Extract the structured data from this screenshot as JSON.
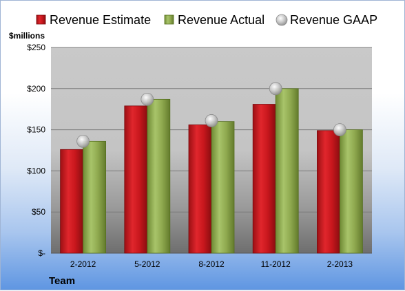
{
  "chart_data": {
    "type": "bar",
    "ylabel": "$millions",
    "xlabel": "Team",
    "categories": [
      "2-2012",
      "5-2012",
      "8-2012",
      "11-2012",
      "2-2013"
    ],
    "ylim": [
      0,
      250
    ],
    "yticks": [
      0,
      50,
      100,
      150,
      200,
      250
    ],
    "ytick_labels": [
      "$-",
      "$50",
      "$100",
      "$150",
      "$200",
      "$250"
    ],
    "grid": true,
    "legend_position": "top",
    "series": [
      {
        "name": "Revenue Estimate",
        "type": "bar",
        "values": [
          126,
          179,
          156,
          181,
          149
        ],
        "color": "#c0161c"
      },
      {
        "name": "Revenue Actual",
        "type": "bar",
        "values": [
          136,
          187,
          160,
          200,
          150
        ],
        "color": "#8faa4e"
      },
      {
        "name": "Revenue GAAP",
        "type": "scatter",
        "values": [
          136,
          187,
          161,
          200,
          150
        ],
        "color": "#b8b8b8"
      }
    ]
  }
}
